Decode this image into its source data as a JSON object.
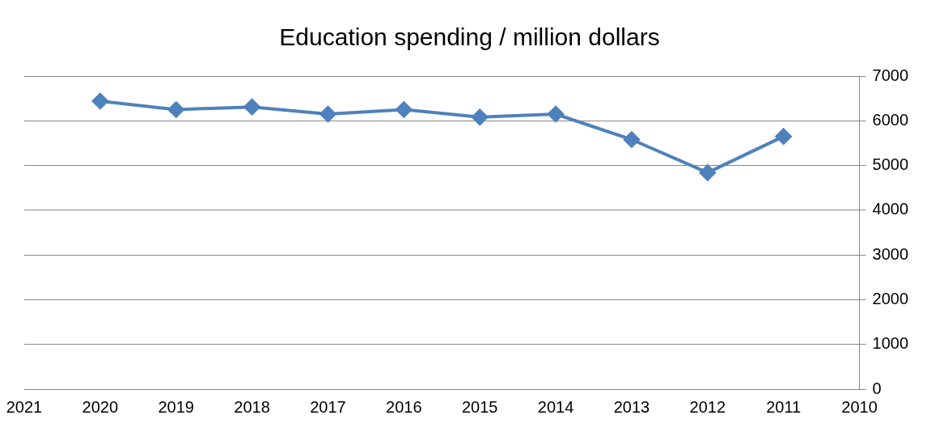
{
  "chart_data": {
    "type": "line",
    "title": "Education spending / million dollars",
    "x": [
      2020,
      2019,
      2018,
      2017,
      2016,
      2015,
      2014,
      2013,
      2012,
      2011
    ],
    "series": [
      {
        "color": "#4f81bd",
        "values": [
          6440,
          6250,
          6310,
          6150,
          6250,
          6080,
          6150,
          5580,
          4840,
          5650
        ]
      }
    ],
    "xlim": [
      2021,
      2010
    ],
    "xticks": [
      2021,
      2020,
      2019,
      2018,
      2017,
      2016,
      2015,
      2014,
      2013,
      2012,
      2011,
      2010
    ],
    "ylim": [
      0,
      7000
    ],
    "yticks": [
      0,
      1000,
      2000,
      3000,
      4000,
      5000,
      6000,
      7000
    ],
    "grid": "y",
    "legend": false,
    "marker": "diamond",
    "line_style": "solid"
  }
}
